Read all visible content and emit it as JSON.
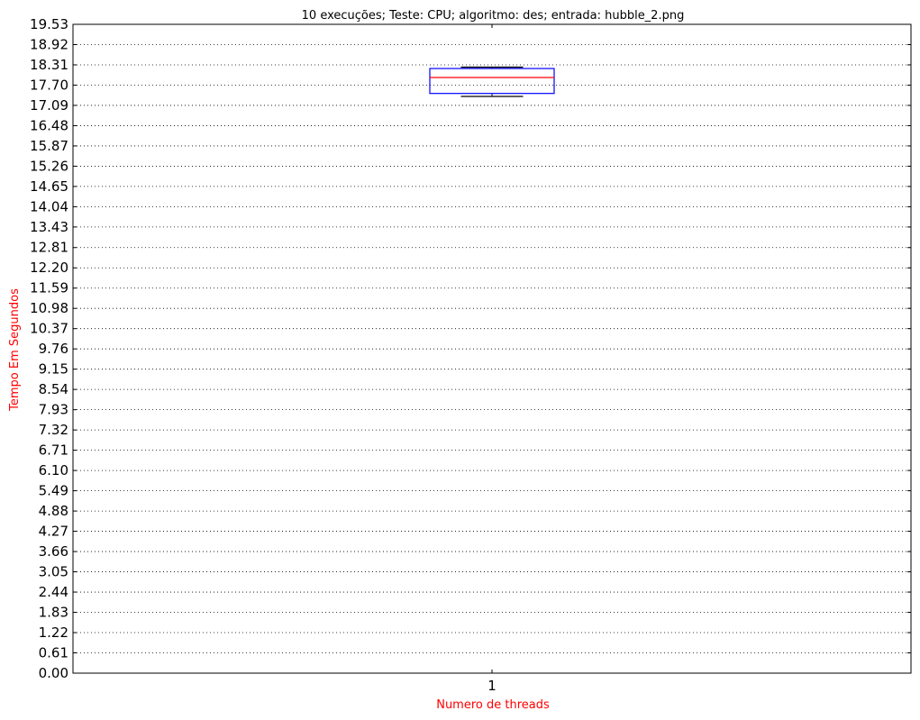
{
  "chart_data": {
    "type": "boxplot",
    "title": "10 execuções;  Teste: CPU;  algoritmo: des;  entrada: hubble_2.png",
    "xlabel": "Numero de threads",
    "ylabel": "Tempo Em Segundos",
    "categories": [
      "1"
    ],
    "ylim": [
      0,
      19.53
    ],
    "yticks": [
      "0.00",
      "0.61",
      "1.22",
      "1.83",
      "2.44",
      "3.05",
      "3.66",
      "4.27",
      "4.88",
      "5.49",
      "6.10",
      "6.71",
      "7.32",
      "7.93",
      "8.54",
      "9.15",
      "9.76",
      "10.37",
      "10.98",
      "11.59",
      "12.20",
      "12.81",
      "13.43",
      "14.04",
      "14.65",
      "15.26",
      "15.87",
      "16.48",
      "17.09",
      "17.70",
      "18.31",
      "18.92",
      "19.53"
    ],
    "grid": "horizontal-dotted",
    "series": [
      {
        "whisker_low": 17.36,
        "q1": 17.45,
        "median": 17.93,
        "q3": 18.2,
        "whisker_high": 18.24
      }
    ],
    "colors": {
      "box": "#0000ff",
      "median": "#ff0000",
      "whisker": "#000080",
      "axis_label": "#ff0000"
    }
  }
}
